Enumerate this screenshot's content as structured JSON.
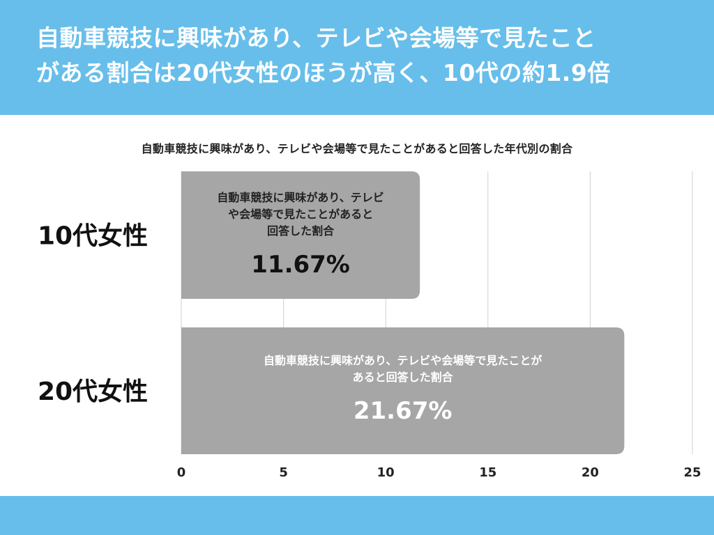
{
  "header": {
    "title_line1": "自動車競技に興味があり、テレビや会場等で見たこと",
    "title_line2": "がある割合は20代女性のほうが高く、10代の約1.9倍"
  },
  "colors": {
    "header_bg": "#67BEEA",
    "bar": "#A6A6A6",
    "grid": "#D0D0D0"
  },
  "chart_data": {
    "type": "bar",
    "orientation": "horizontal",
    "title": "自動車競技に興味があり、テレビや会場等で見たことがあると回答した年代別の割合",
    "categories": [
      "10代女性",
      "20代女性"
    ],
    "values": [
      11.67,
      21.67
    ],
    "value_labels": [
      "11.67%",
      "21.67%"
    ],
    "bar_text_lines": [
      [
        "自動車競技に興味があり、テレビ",
        "や会場等で見たことがあると",
        "回答した割合"
      ],
      [
        "自動車競技に興味があり、テレビや会場等で見たことが",
        "あると回答した割合"
      ]
    ],
    "xlim": [
      0,
      25
    ],
    "xticks": [
      0,
      5,
      10,
      15,
      20,
      25
    ],
    "grid": true
  }
}
